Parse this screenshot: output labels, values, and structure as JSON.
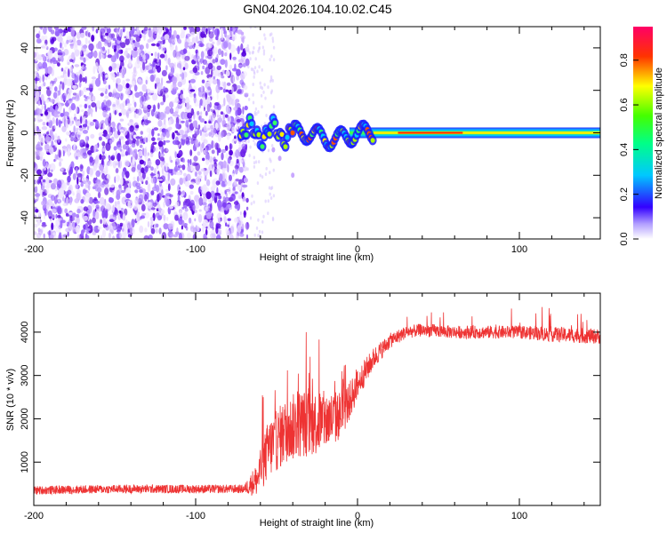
{
  "page_title": "GN04.2026.104.10.02.C45",
  "colors": {
    "snr_line": "#ee3333",
    "frame": "#000000",
    "spectrogram_noise": "#7a2cf0"
  },
  "chart_data": [
    {
      "id": "spectrogram",
      "type": "heatmap",
      "title": "GN04.2026.104.10.02.C45",
      "xlabel": "Height of straight line (km)",
      "ylabel": "Frequency (Hz)",
      "xlim": [
        -200,
        150
      ],
      "ylim": [
        -50,
        50
      ],
      "x_ticks": [
        -200,
        -100,
        0,
        100
      ],
      "x_tick_labels": [
        "-200",
        "-100",
        "0",
        "100"
      ],
      "y_ticks": [
        -40,
        -20,
        0,
        20,
        40
      ],
      "y_tick_labels": [
        "-40",
        "-20",
        "0",
        "20",
        "40"
      ],
      "noise_region_x": [
        -200,
        -68
      ],
      "signal_frequency_hz": 0,
      "colorbar": {
        "label": "Normalized spectral amplitude",
        "range": [
          0,
          0.95
        ],
        "ticks": [
          0.0,
          0.2,
          0.4,
          0.6,
          0.8
        ],
        "tick_labels": [
          "0.0",
          "0.2",
          "0.4",
          "0.6",
          "0.8"
        ]
      }
    },
    {
      "id": "snr",
      "type": "line",
      "xlabel": "Height of straight line (km)",
      "ylabel": "SNR (10 * v/v)",
      "xlim": [
        -200,
        150
      ],
      "ylim": [
        0,
        4900
      ],
      "x_ticks": [
        -200,
        -100,
        0,
        100
      ],
      "x_tick_labels": [
        "-200",
        "-100",
        "0",
        "100"
      ],
      "y_ticks": [
        1000,
        2000,
        3000,
        4000
      ],
      "y_tick_labels": [
        "1000",
        "2000",
        "3000",
        "4000"
      ],
      "series": [
        {
          "name": "SNR",
          "x": [
            -200,
            -150,
            -100,
            -70,
            -62,
            -55,
            -45,
            -35,
            -25,
            -15,
            -10,
            -5,
            0,
            10,
            20,
            30,
            40,
            60,
            80,
            100,
            120,
            150
          ],
          "values": [
            350,
            380,
            380,
            380,
            600,
            1300,
            1700,
            1900,
            1900,
            2000,
            2100,
            2400,
            2800,
            3400,
            3800,
            4000,
            4050,
            4000,
            4000,
            4000,
            3950,
            3900
          ],
          "noise_amplitude": [
            200,
            200,
            200,
            200,
            800,
            1400,
            1500,
            1600,
            1500,
            1300,
            1100,
            900,
            700,
            500,
            350,
            300,
            300,
            300,
            300,
            300,
            350,
            350
          ]
        }
      ]
    }
  ]
}
